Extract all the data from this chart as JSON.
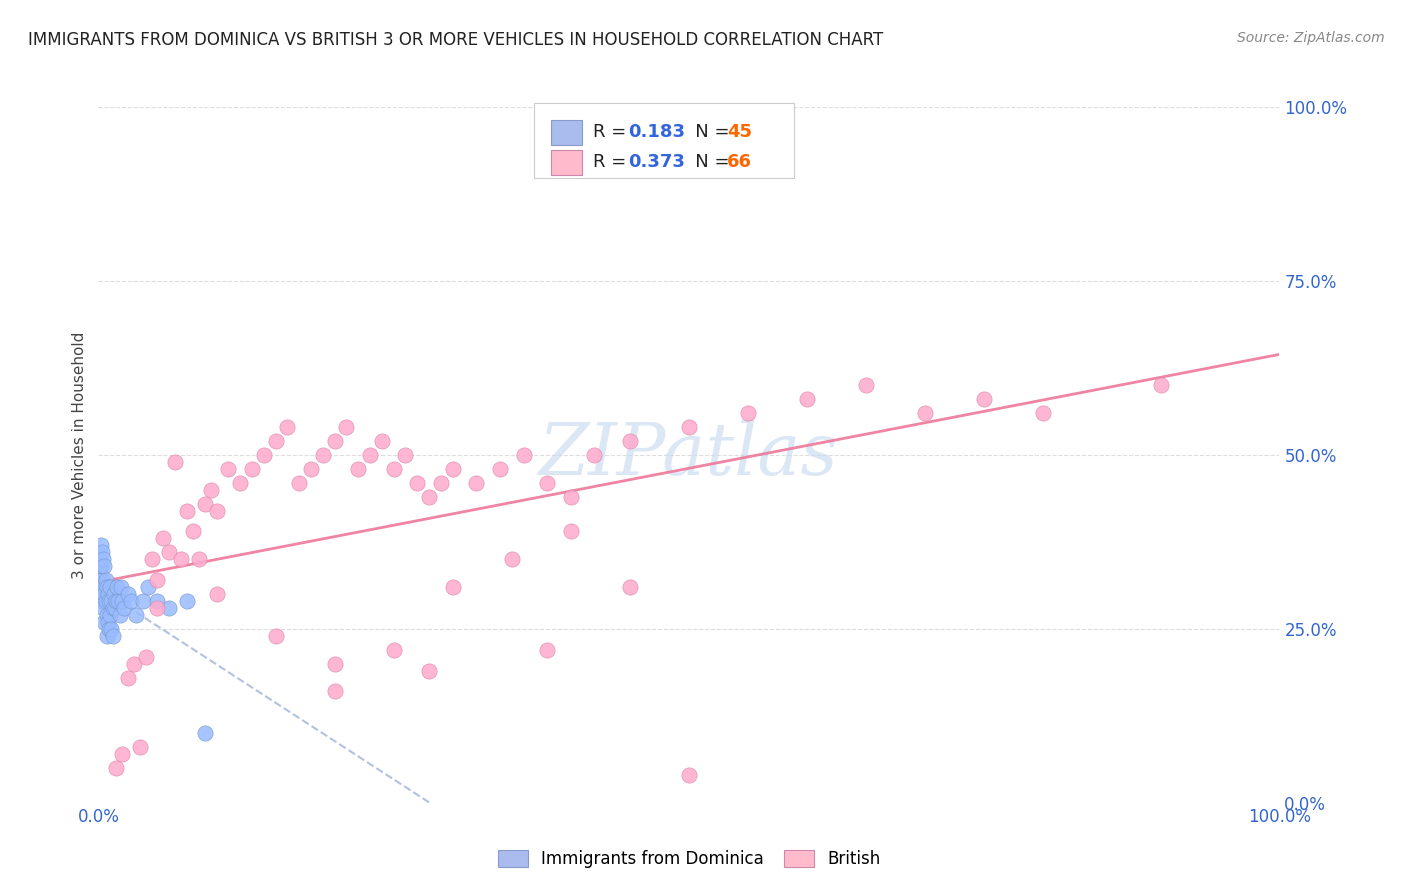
{
  "title": "IMMIGRANTS FROM DOMINICA VS BRITISH 3 OR MORE VEHICLES IN HOUSEHOLD CORRELATION CHART",
  "source": "Source: ZipAtlas.com",
  "ylabel": "3 or more Vehicles in Household",
  "legend": {
    "blue_R": "0.183",
    "blue_N": "45",
    "pink_R": "0.373",
    "pink_N": "66"
  },
  "blue_color": "#99bbff",
  "pink_color": "#ffaacc",
  "blue_line_color": "#aabbdd",
  "pink_line_color": "#ff99bb",
  "watermark_color": "#c5d8f0",
  "grid_color": "#dddddd",
  "title_color": "#222222",
  "source_color": "#888888",
  "axis_label_color": "#3366cc",
  "ylabel_color": "#444444",
  "blue_x": [
    0.001,
    0.002,
    0.002,
    0.003,
    0.003,
    0.003,
    0.004,
    0.004,
    0.004,
    0.005,
    0.005,
    0.005,
    0.006,
    0.006,
    0.007,
    0.007,
    0.007,
    0.008,
    0.008,
    0.009,
    0.009,
    0.01,
    0.01,
    0.011,
    0.011,
    0.012,
    0.012,
    0.013,
    0.014,
    0.015,
    0.016,
    0.017,
    0.018,
    0.019,
    0.02,
    0.022,
    0.025,
    0.028,
    0.032,
    0.038,
    0.042,
    0.05,
    0.06,
    0.075,
    0.09
  ],
  "blue_y": [
    0.33,
    0.37,
    0.34,
    0.36,
    0.32,
    0.29,
    0.35,
    0.31,
    0.28,
    0.34,
    0.3,
    0.26,
    0.32,
    0.29,
    0.31,
    0.27,
    0.24,
    0.3,
    0.26,
    0.29,
    0.25,
    0.31,
    0.27,
    0.29,
    0.25,
    0.28,
    0.24,
    0.3,
    0.28,
    0.29,
    0.31,
    0.29,
    0.27,
    0.31,
    0.29,
    0.28,
    0.3,
    0.29,
    0.27,
    0.29,
    0.31,
    0.29,
    0.28,
    0.29,
    0.1
  ],
  "pink_x": [
    0.015,
    0.02,
    0.025,
    0.03,
    0.035,
    0.04,
    0.045,
    0.05,
    0.055,
    0.06,
    0.065,
    0.07,
    0.075,
    0.08,
    0.085,
    0.09,
    0.095,
    0.1,
    0.11,
    0.12,
    0.13,
    0.14,
    0.15,
    0.16,
    0.17,
    0.18,
    0.19,
    0.2,
    0.21,
    0.22,
    0.23,
    0.24,
    0.25,
    0.26,
    0.27,
    0.28,
    0.29,
    0.3,
    0.32,
    0.34,
    0.36,
    0.38,
    0.4,
    0.42,
    0.45,
    0.5,
    0.55,
    0.6,
    0.65,
    0.7,
    0.75,
    0.8,
    0.9,
    0.05,
    0.1,
    0.15,
    0.2,
    0.25,
    0.3,
    0.35,
    0.4,
    0.45,
    0.38,
    0.28,
    0.2,
    0.5
  ],
  "pink_y": [
    0.05,
    0.07,
    0.18,
    0.2,
    0.08,
    0.21,
    0.35,
    0.32,
    0.38,
    0.36,
    0.49,
    0.35,
    0.42,
    0.39,
    0.35,
    0.43,
    0.45,
    0.42,
    0.48,
    0.46,
    0.48,
    0.5,
    0.52,
    0.54,
    0.46,
    0.48,
    0.5,
    0.52,
    0.54,
    0.48,
    0.5,
    0.52,
    0.48,
    0.5,
    0.46,
    0.44,
    0.46,
    0.48,
    0.46,
    0.48,
    0.5,
    0.46,
    0.44,
    0.5,
    0.52,
    0.54,
    0.56,
    0.58,
    0.6,
    0.56,
    0.58,
    0.56,
    0.6,
    0.28,
    0.3,
    0.24,
    0.2,
    0.22,
    0.31,
    0.35,
    0.39,
    0.31,
    0.22,
    0.19,
    0.16,
    0.04
  ],
  "xlim": [
    0.0,
    1.0
  ],
  "ylim": [
    0.0,
    1.0
  ],
  "xticks": [
    0.0,
    1.0
  ],
  "yticks": [
    0.0,
    0.25,
    0.5,
    0.75,
    1.0
  ],
  "xtick_labels": [
    "0.0%",
    "100.0%"
  ],
  "ytick_labels": [
    "0.0%",
    "25.0%",
    "50.0%",
    "75.0%",
    "100.0%"
  ]
}
